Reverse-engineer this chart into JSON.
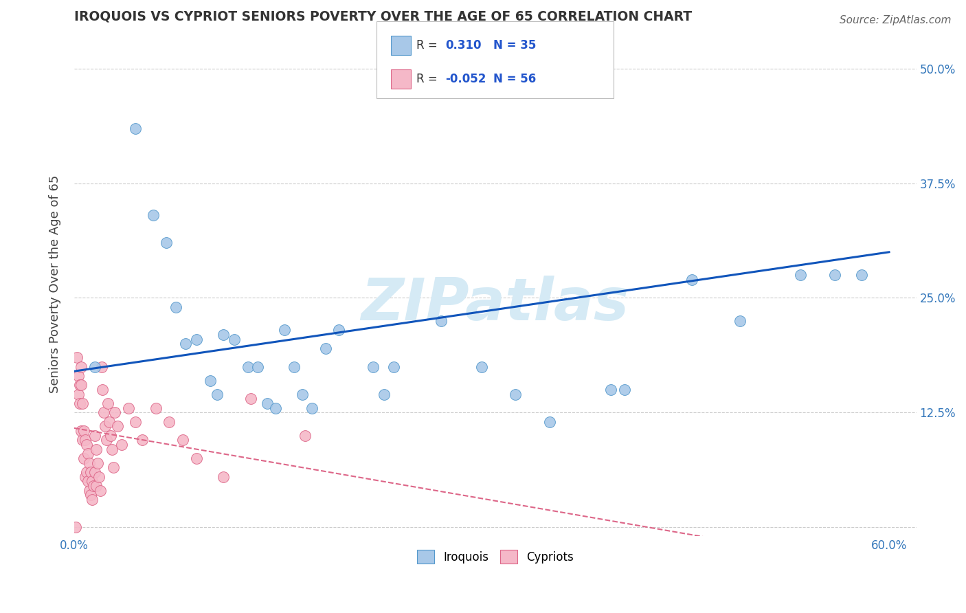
{
  "title": "IROQUOIS VS CYPRIOT SENIORS POVERTY OVER THE AGE OF 65 CORRELATION CHART",
  "source": "Source: ZipAtlas.com",
  "ylabel": "Seniors Poverty Over the Age of 65",
  "xlim": [
    0.0,
    0.62
  ],
  "ylim": [
    -0.01,
    0.54
  ],
  "xticks": [
    0.0,
    0.1,
    0.2,
    0.3,
    0.4,
    0.5,
    0.6
  ],
  "xticklabels": [
    "0.0%",
    "",
    "",
    "",
    "",
    "",
    "60.0%"
  ],
  "yticks": [
    0.0,
    0.125,
    0.25,
    0.375,
    0.5
  ],
  "yticklabels": [
    "",
    "12.5%",
    "25.0%",
    "37.5%",
    "50.0%"
  ],
  "iroquois_color": "#a8c8e8",
  "iroquois_edge": "#5599cc",
  "iroquois_line_color": "#1155bb",
  "cypriot_color": "#f5b8c8",
  "cypriot_edge": "#dd6688",
  "cypriot_line_color": "#dd6688",
  "watermark_color": "#d5eaf5",
  "iroquois_x": [
    0.015,
    0.045,
    0.058,
    0.068,
    0.075,
    0.082,
    0.09,
    0.1,
    0.105,
    0.11,
    0.118,
    0.128,
    0.135,
    0.142,
    0.148,
    0.155,
    0.162,
    0.168,
    0.175,
    0.185,
    0.195,
    0.22,
    0.228,
    0.235,
    0.27,
    0.3,
    0.325,
    0.35,
    0.395,
    0.405,
    0.455,
    0.49,
    0.535,
    0.56,
    0.58
  ],
  "iroquois_y": [
    0.175,
    0.435,
    0.34,
    0.31,
    0.24,
    0.2,
    0.205,
    0.16,
    0.145,
    0.21,
    0.205,
    0.175,
    0.175,
    0.135,
    0.13,
    0.215,
    0.175,
    0.145,
    0.13,
    0.195,
    0.215,
    0.175,
    0.145,
    0.175,
    0.225,
    0.175,
    0.145,
    0.115,
    0.15,
    0.15,
    0.27,
    0.225,
    0.275,
    0.275,
    0.275
  ],
  "cypriot_x": [
    0.002,
    0.003,
    0.003,
    0.004,
    0.004,
    0.005,
    0.005,
    0.005,
    0.006,
    0.006,
    0.007,
    0.007,
    0.008,
    0.008,
    0.009,
    0.009,
    0.01,
    0.01,
    0.011,
    0.011,
    0.012,
    0.012,
    0.013,
    0.013,
    0.014,
    0.015,
    0.015,
    0.016,
    0.016,
    0.017,
    0.018,
    0.019,
    0.02,
    0.021,
    0.022,
    0.023,
    0.024,
    0.025,
    0.026,
    0.027,
    0.028,
    0.029,
    0.03,
    0.032,
    0.035,
    0.04,
    0.045,
    0.05,
    0.06,
    0.07,
    0.08,
    0.09,
    0.11,
    0.13,
    0.17,
    0.001
  ],
  "cypriot_y": [
    0.185,
    0.165,
    0.145,
    0.155,
    0.135,
    0.175,
    0.155,
    0.105,
    0.135,
    0.095,
    0.105,
    0.075,
    0.095,
    0.055,
    0.09,
    0.06,
    0.08,
    0.05,
    0.07,
    0.04,
    0.06,
    0.035,
    0.05,
    0.03,
    0.045,
    0.1,
    0.06,
    0.085,
    0.045,
    0.07,
    0.055,
    0.04,
    0.175,
    0.15,
    0.125,
    0.11,
    0.095,
    0.135,
    0.115,
    0.1,
    0.085,
    0.065,
    0.125,
    0.11,
    0.09,
    0.13,
    0.115,
    0.095,
    0.13,
    0.115,
    0.095,
    0.075,
    0.055,
    0.14,
    0.1,
    0.0
  ],
  "iq_line_x0": 0.0,
  "iq_line_x1": 0.6,
  "iq_line_y0": 0.17,
  "iq_line_y1": 0.3,
  "cy_line_x0": 0.0,
  "cy_line_x1": 0.5,
  "cy_line_y0": 0.108,
  "cy_line_y1": -0.02
}
